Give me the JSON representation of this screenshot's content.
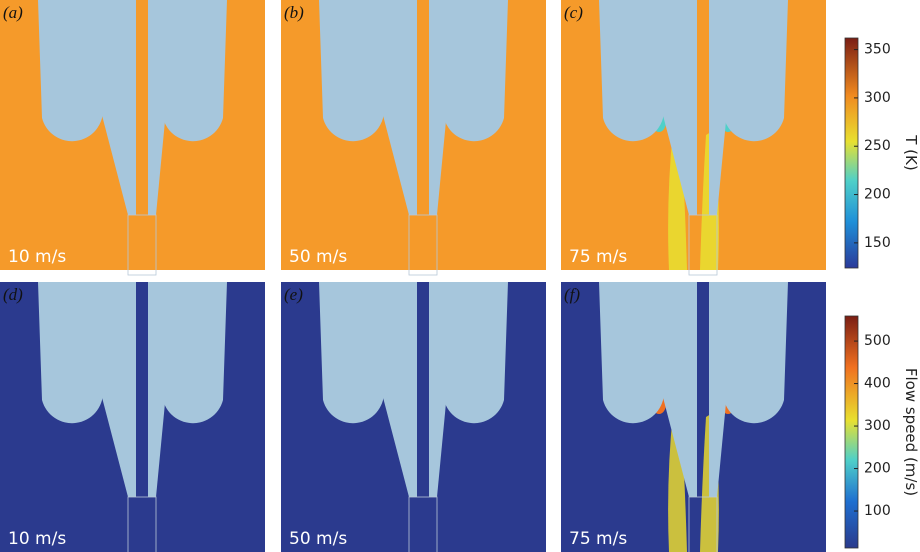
{
  "panels": [
    {
      "label": "(a)",
      "speed": "10 m/s"
    },
    {
      "label": "(b)",
      "speed": "50 m/s"
    },
    {
      "label": "(c)",
      "speed": "75 m/s"
    },
    {
      "label": "(d)",
      "speed": "10 m/s"
    },
    {
      "label": "(e)",
      "speed": "50 m/s"
    },
    {
      "label": "(f)",
      "speed": "75 m/s"
    }
  ],
  "colorbars": [
    {
      "title": "T (K)",
      "range": [
        124,
        362
      ],
      "ticks": [
        150,
        200,
        250,
        300,
        350
      ]
    },
    {
      "title": "Flow speed (m/s)",
      "range": [
        13,
        559
      ],
      "ticks": [
        100,
        200,
        300,
        400,
        500
      ]
    }
  ]
}
